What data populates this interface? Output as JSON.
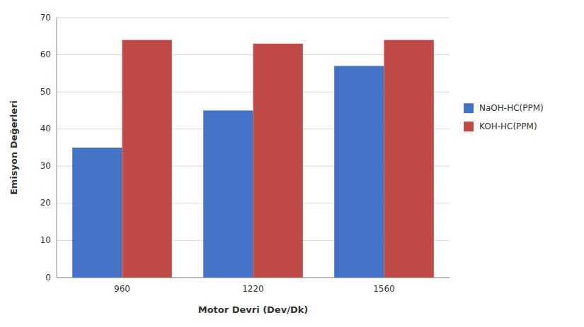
{
  "chart_data": {
    "type": "bar",
    "xlabel": "Motor Devri (Dev/Dk)",
    "ylabel": "Emisyon Değerleri",
    "categories": [
      "960",
      "1220",
      "1560"
    ],
    "series": [
      {
        "name": "NaOH-HC(PPM)",
        "color": "#4472C4",
        "values": [
          35,
          45,
          57
        ]
      },
      {
        "name": "KOH-HC(PPM)",
        "color": "#BE4B48",
        "values": [
          64,
          63,
          64
        ]
      }
    ],
    "ylim": [
      0,
      70
    ],
    "yticks": [
      0,
      10,
      20,
      30,
      40,
      50,
      60,
      70
    ],
    "grid": true,
    "legend": "right"
  }
}
